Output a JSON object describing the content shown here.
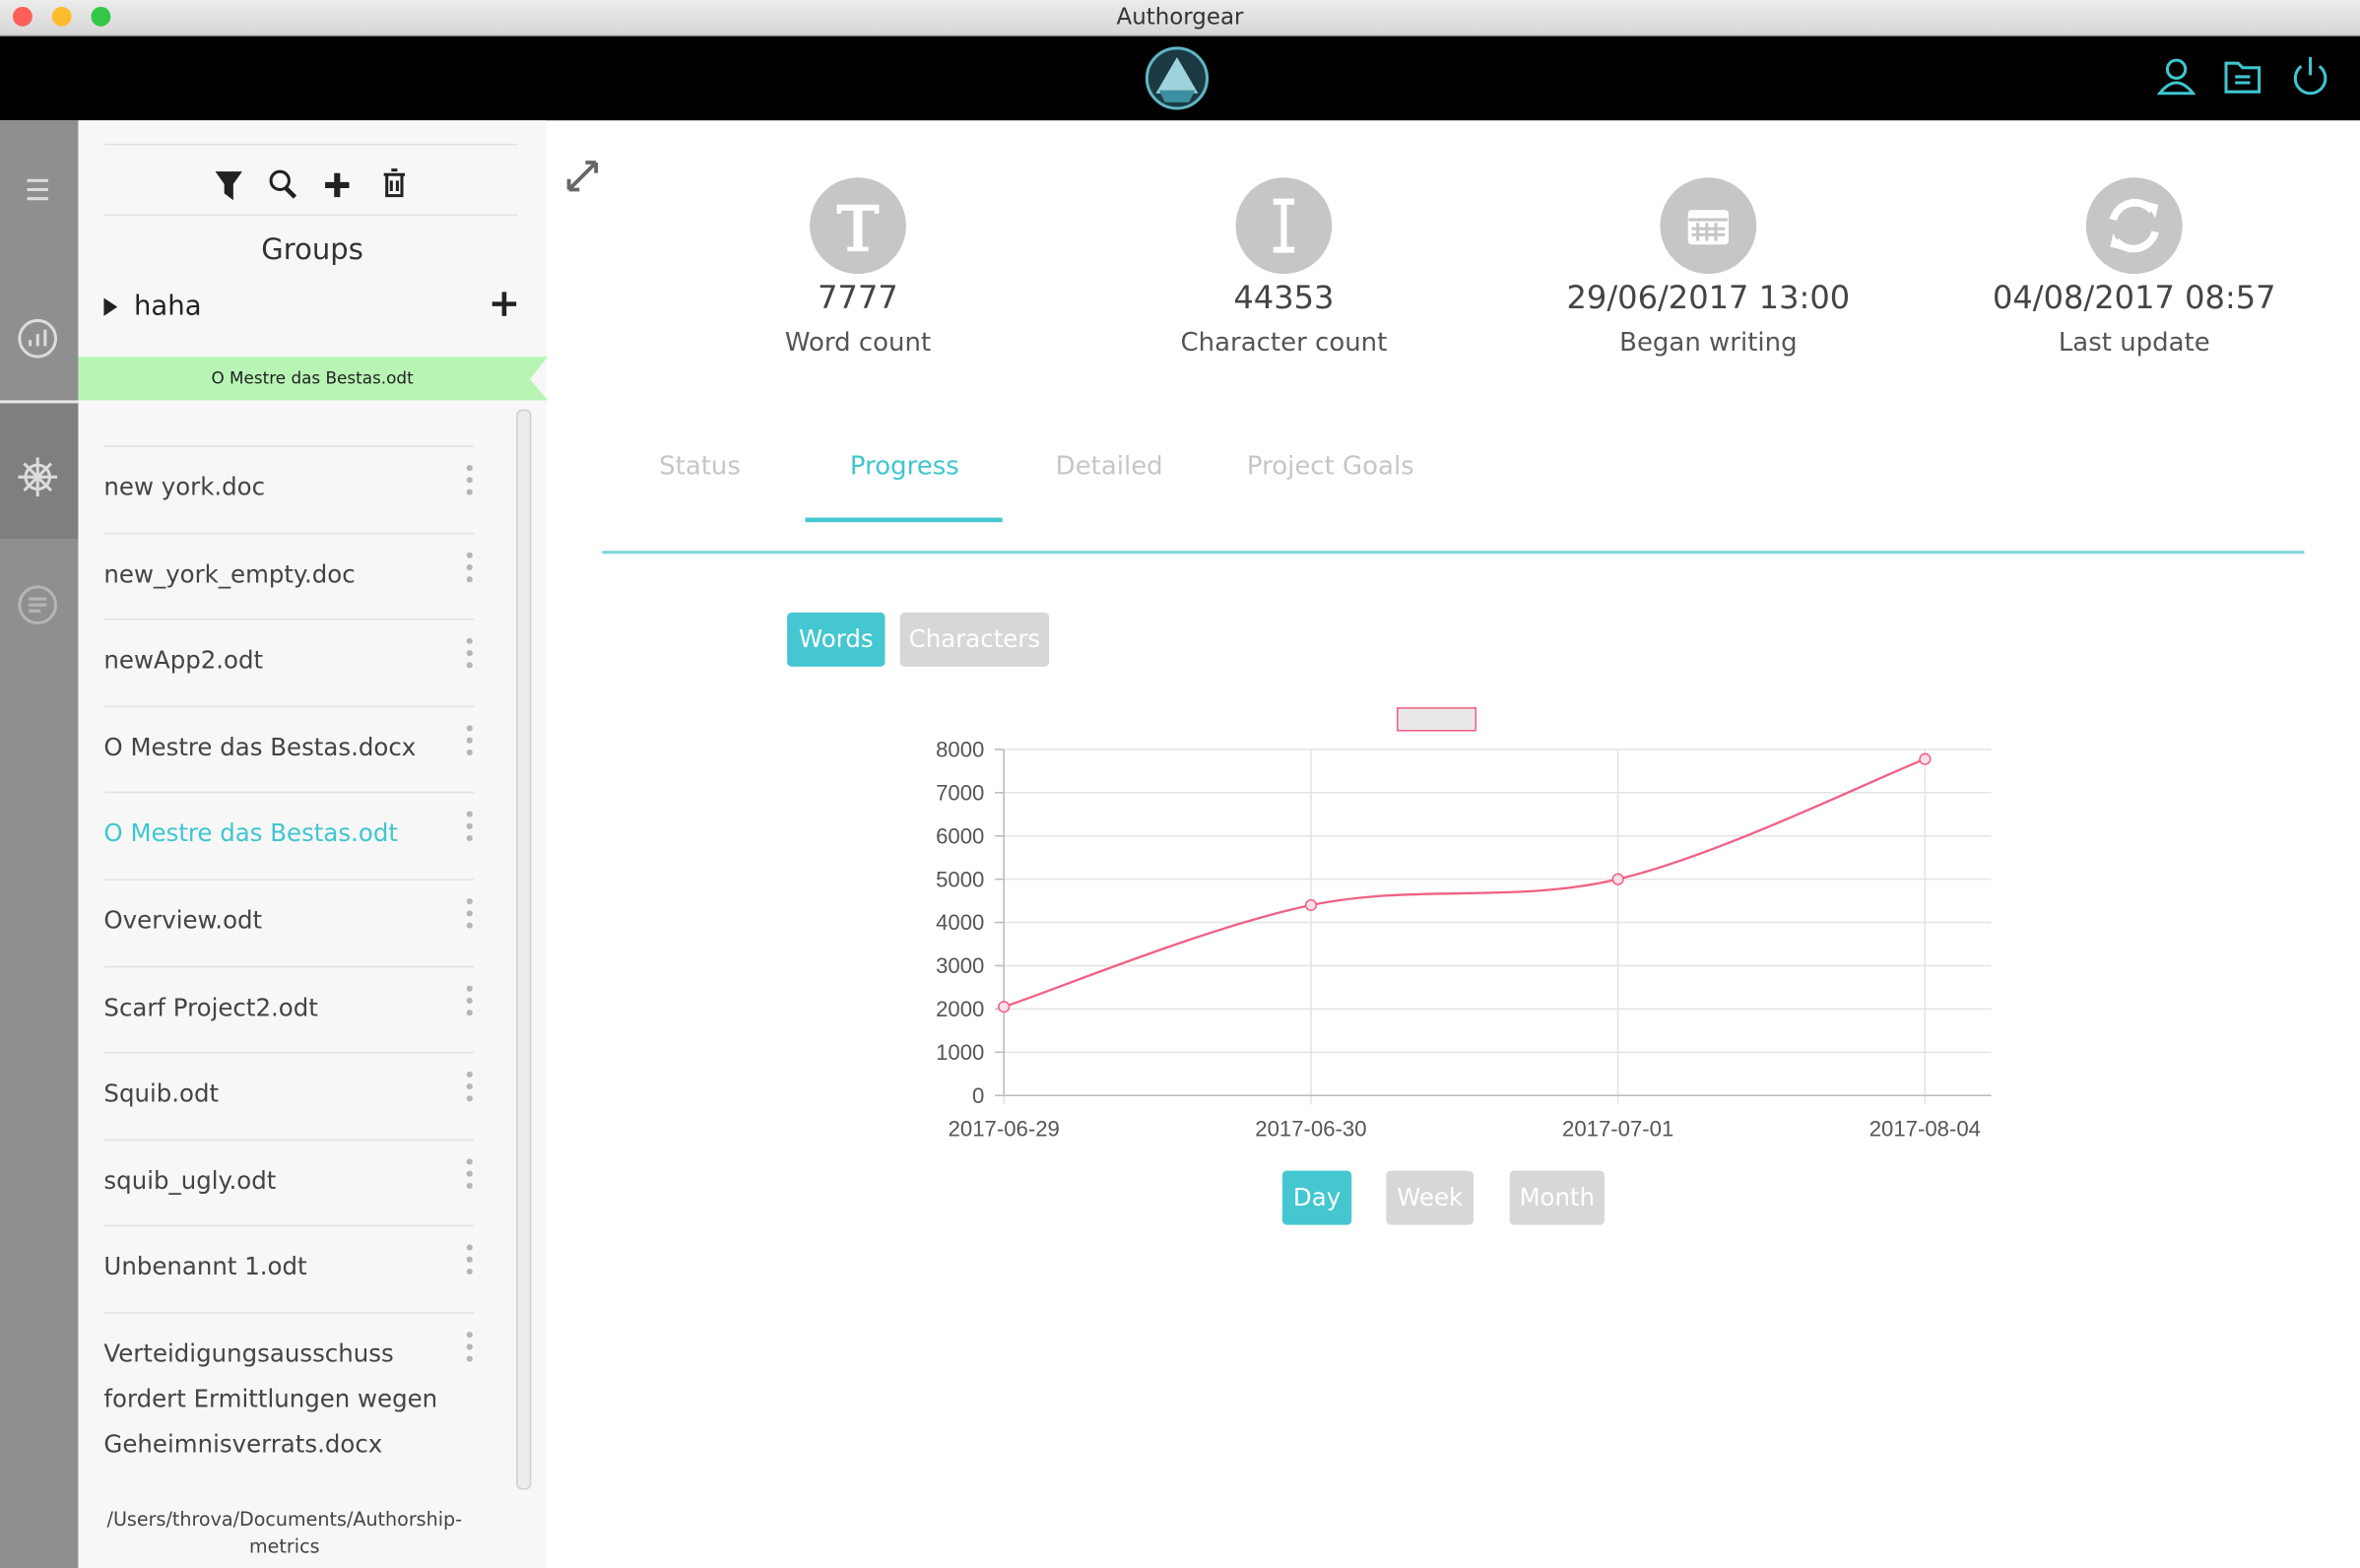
{
  "window": {
    "title": "Authorgear"
  },
  "sidebar": {
    "heading": "Groups",
    "group": "haha",
    "active_file": "O Mestre das Bestas.odt",
    "files": [
      "new york.doc",
      "new_york_empty.doc",
      "newApp2.odt",
      "O Mestre das Bestas.docx",
      "O Mestre das Bestas.odt",
      "Overview.odt",
      "Scarf Project2.odt",
      "Squib.odt",
      "squib_ugly.odt",
      "Unbenannt 1.odt",
      "Verteidigungsausschuss fordert Ermittlungen wegen Geheimnisverrats.docx"
    ],
    "path": "/Users/throva/Documents/Authorship-metrics"
  },
  "stats": [
    {
      "value": 7777,
      "label": "Word count"
    },
    {
      "value": 44353,
      "label": "Character count"
    },
    {
      "value": "29/06/2017 13:00",
      "label": "Began writing"
    },
    {
      "value": "04/08/2017 08:57",
      "label": "Last update"
    }
  ],
  "tabs": [
    "Status",
    "Progress",
    "Detailed",
    "Project Goals"
  ],
  "active_tab": 1,
  "metric_buttons": [
    "Words",
    "Characters"
  ],
  "active_metric": 0,
  "chart_data": {
    "type": "line",
    "categories": [
      "2017-06-29",
      "2017-06-30",
      "2017-07-01",
      "2017-08-04"
    ],
    "series": [
      {
        "color": "#f06084",
        "values": [
          2050,
          4400,
          5000,
          7777
        ]
      }
    ],
    "ylim": [
      0,
      8000
    ],
    "yticks": [
      0,
      1000,
      2000,
      3000,
      4000,
      5000,
      6000,
      7000,
      8000
    ],
    "grid": true
  },
  "period_buttons": [
    "Day",
    "Week",
    "Month"
  ],
  "active_period": 0
}
